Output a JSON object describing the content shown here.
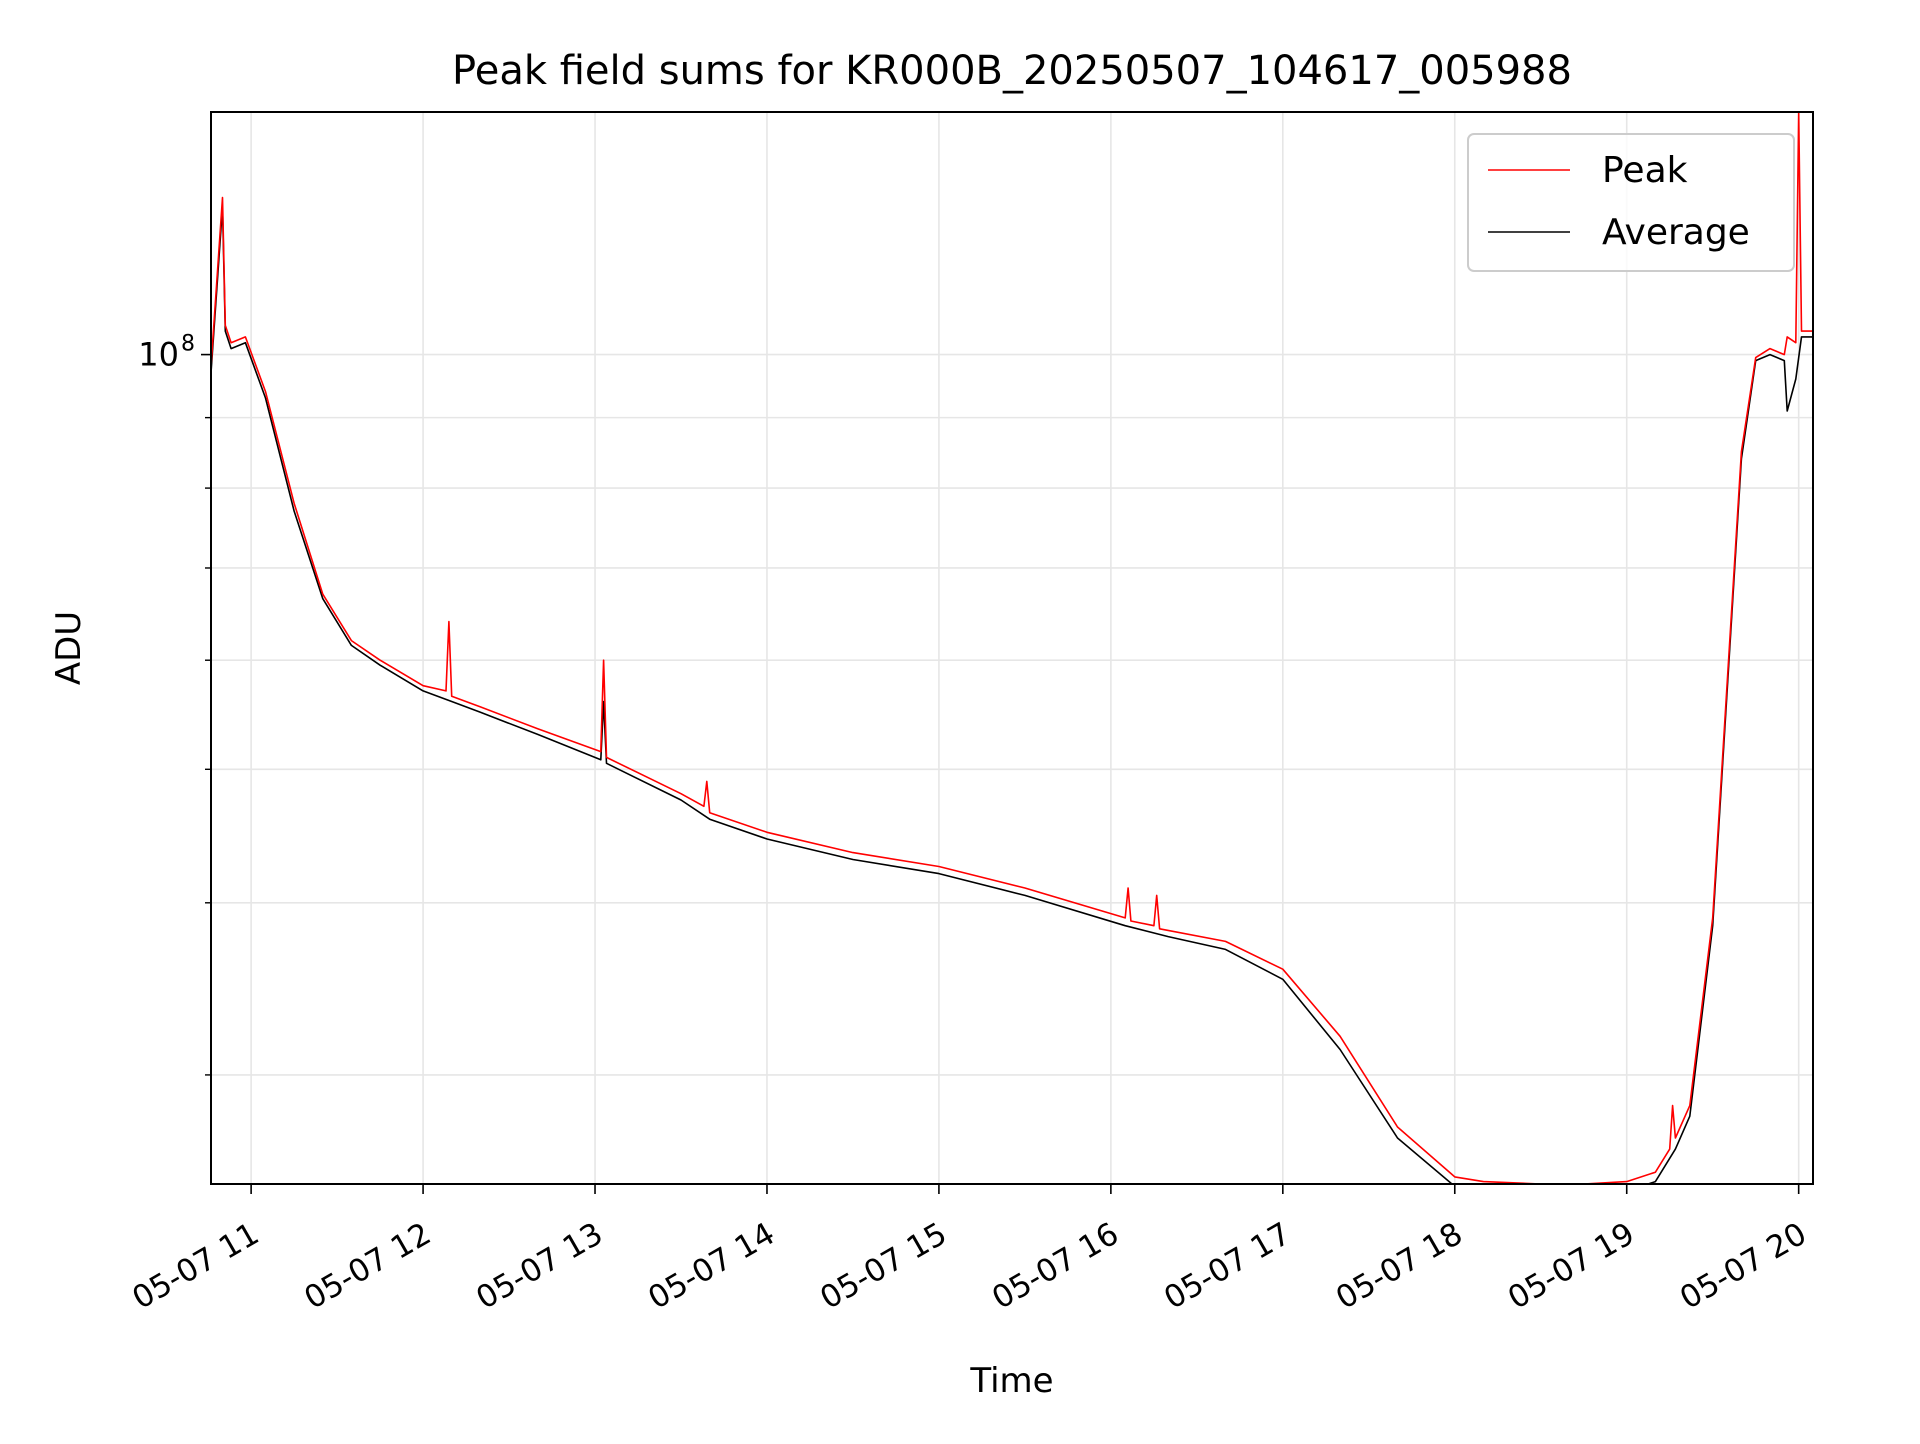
{
  "chart_data": {
    "type": "line",
    "title": "Peak field sums for KR000B_20250507_104617_005988",
    "xlabel": "Time",
    "ylabel": "ADU",
    "y_scale": "log",
    "grid": true,
    "legend_position": "top-right",
    "xlim": [
      "2025-05-07 10:46",
      "2025-05-07 20:05"
    ],
    "ylim": [
      25000000,
      150000000
    ],
    "x_ticks": [
      "05-07 11",
      "05-07 12",
      "05-07 13",
      "05-07 14",
      "05-07 15",
      "05-07 16",
      "05-07 17",
      "05-07 18",
      "05-07 19",
      "05-07 20"
    ],
    "x_tick_times": [
      "2025-05-07 11:00",
      "2025-05-07 12:00",
      "2025-05-07 13:00",
      "2025-05-07 14:00",
      "2025-05-07 15:00",
      "2025-05-07 16:00",
      "2025-05-07 17:00",
      "2025-05-07 18:00",
      "2025-05-07 19:00",
      "2025-05-07 20:00"
    ],
    "y_major_ticks": [
      {
        "value": 100000000,
        "base": "10",
        "exp": "8"
      }
    ],
    "y_minor_ticks": [
      30000000,
      40000000,
      50000000,
      60000000,
      70000000,
      80000000,
      90000000
    ],
    "series": [
      {
        "name": "Peak",
        "color": "#ff0000",
        "x": [
          "2025-05-07 10:46",
          "2025-05-07 10:50",
          "2025-05-07 10:51",
          "2025-05-07 10:53",
          "2025-05-07 10:58",
          "2025-05-07 11:05",
          "2025-05-07 11:15",
          "2025-05-07 11:25",
          "2025-05-07 11:35",
          "2025-05-07 11:45",
          "2025-05-07 12:00",
          "2025-05-07 12:08",
          "2025-05-07 12:09",
          "2025-05-07 12:10",
          "2025-05-07 12:20",
          "2025-05-07 12:40",
          "2025-05-07 13:02",
          "2025-05-07 13:03",
          "2025-05-07 13:04",
          "2025-05-07 13:30",
          "2025-05-07 13:38",
          "2025-05-07 13:39",
          "2025-05-07 13:40",
          "2025-05-07 14:00",
          "2025-05-07 14:30",
          "2025-05-07 15:00",
          "2025-05-07 15:30",
          "2025-05-07 16:05",
          "2025-05-07 16:06",
          "2025-05-07 16:07",
          "2025-05-07 16:15",
          "2025-05-07 16:16",
          "2025-05-07 16:17",
          "2025-05-07 16:40",
          "2025-05-07 17:00",
          "2025-05-07 17:20",
          "2025-05-07 17:40",
          "2025-05-07 18:00",
          "2025-05-07 18:10",
          "2025-05-07 18:30",
          "2025-05-07 18:45",
          "2025-05-07 19:00",
          "2025-05-07 19:10",
          "2025-05-07 19:15",
          "2025-05-07 19:16",
          "2025-05-07 19:17",
          "2025-05-07 19:22",
          "2025-05-07 19:30",
          "2025-05-07 19:40",
          "2025-05-07 19:45",
          "2025-05-07 19:50",
          "2025-05-07 19:55",
          "2025-05-07 19:56",
          "2025-05-07 19:59",
          "2025-05-07 20:00",
          "2025-05-07 20:01",
          "2025-05-07 20:05"
        ],
        "y": [
          98000000,
          130000000,
          105000000,
          102000000,
          103000000,
          94000000,
          78000000,
          67000000,
          62000000,
          60000000,
          57500000,
          57000000,
          64000000,
          56500000,
          55500000,
          53500000,
          51500000,
          60000000,
          51000000,
          48000000,
          47000000,
          49000000,
          46500000,
          45000000,
          43500000,
          42500000,
          41000000,
          39000000,
          41000000,
          38800000,
          38500000,
          40500000,
          38300000,
          37500000,
          35800000,
          32000000,
          27500000,
          25300000,
          25100000,
          25000000,
          25000000,
          25100000,
          25500000,
          26500000,
          28500000,
          27000000,
          28500000,
          39000000,
          85000000,
          99500000,
          101000000,
          100000000,
          103000000,
          102000000,
          150000000,
          104000000,
          104000000
        ]
      },
      {
        "name": "Average",
        "color": "#000000",
        "x": [
          "2025-05-07 10:46",
          "2025-05-07 10:50",
          "2025-05-07 10:51",
          "2025-05-07 10:53",
          "2025-05-07 10:58",
          "2025-05-07 11:05",
          "2025-05-07 11:15",
          "2025-05-07 11:25",
          "2025-05-07 11:35",
          "2025-05-07 11:45",
          "2025-05-07 12:00",
          "2025-05-07 12:10",
          "2025-05-07 12:20",
          "2025-05-07 12:40",
          "2025-05-07 13:02",
          "2025-05-07 13:03",
          "2025-05-07 13:04",
          "2025-05-07 13:30",
          "2025-05-07 13:40",
          "2025-05-07 14:00",
          "2025-05-07 14:30",
          "2025-05-07 15:00",
          "2025-05-07 15:30",
          "2025-05-07 16:05",
          "2025-05-07 16:20",
          "2025-05-07 16:40",
          "2025-05-07 17:00",
          "2025-05-07 17:20",
          "2025-05-07 17:40",
          "2025-05-07 18:00",
          "2025-05-07 18:10",
          "2025-05-07 18:30",
          "2025-05-07 18:45",
          "2025-05-07 19:00",
          "2025-05-07 19:10",
          "2025-05-07 19:17",
          "2025-05-07 19:22",
          "2025-05-07 19:30",
          "2025-05-07 19:40",
          "2025-05-07 19:45",
          "2025-05-07 19:50",
          "2025-05-07 19:55",
          "2025-05-07 19:56",
          "2025-05-07 19:59",
          "2025-05-07 20:01",
          "2025-05-07 20:05"
        ],
        "y": [
          97000000,
          128000000,
          104000000,
          101000000,
          102000000,
          93000000,
          77000000,
          66500000,
          61500000,
          59500000,
          57000000,
          56000000,
          55000000,
          53000000,
          50800000,
          56000000,
          50500000,
          47500000,
          46000000,
          44500000,
          43000000,
          42000000,
          40500000,
          38500000,
          37800000,
          37000000,
          35200000,
          31300000,
          27000000,
          24900000,
          24700000,
          24600000,
          24600000,
          24700000,
          25100000,
          26500000,
          28000000,
          38500000,
          84000000,
          99000000,
          100000000,
          99000000,
          91000000,
          96000000,
          103000000,
          103000000
        ]
      }
    ]
  }
}
